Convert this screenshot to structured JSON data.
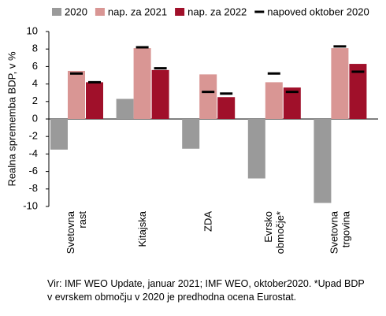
{
  "chart_data": {
    "type": "bar",
    "y_label": "Realna sprememba BDP, v %",
    "categories": [
      "Svetovna rast",
      "Kitajska",
      "ZDA",
      "Evrsko območje*",
      "Svetovna trgovina"
    ],
    "series": [
      {
        "name": "2020",
        "color": "#9a9a9a",
        "values": [
          -3.5,
          2.3,
          -3.4,
          -6.8,
          -9.6
        ]
      },
      {
        "name": "nap. za 2021",
        "color": "#d99694",
        "values": [
          5.5,
          8.1,
          5.1,
          4.2,
          8.1
        ]
      },
      {
        "name": "nap. za 2022",
        "color": "#a0102a",
        "values": [
          4.2,
          5.6,
          2.5,
          3.6,
          6.3
        ]
      },
      {
        "name": "napoved oktober 2020",
        "color": "#000000",
        "marker": "dash",
        "values": [
          [
            5.2,
            4.2
          ],
          [
            8.2,
            5.8
          ],
          [
            3.1,
            2.9
          ],
          [
            5.2,
            3.1
          ],
          [
            8.3,
            5.4
          ]
        ]
      }
    ],
    "ylim": [
      -10,
      10
    ],
    "yticks": [
      -10,
      -8,
      -6,
      -4,
      -2,
      0,
      2,
      4,
      6,
      8,
      10
    ],
    "note": "Vir: IMF WEO Update, januar 2021; IMF WEO, oktober2020. *Upad BDP v evrskem območju v 2020 je predhodna ocena Eurostat."
  }
}
